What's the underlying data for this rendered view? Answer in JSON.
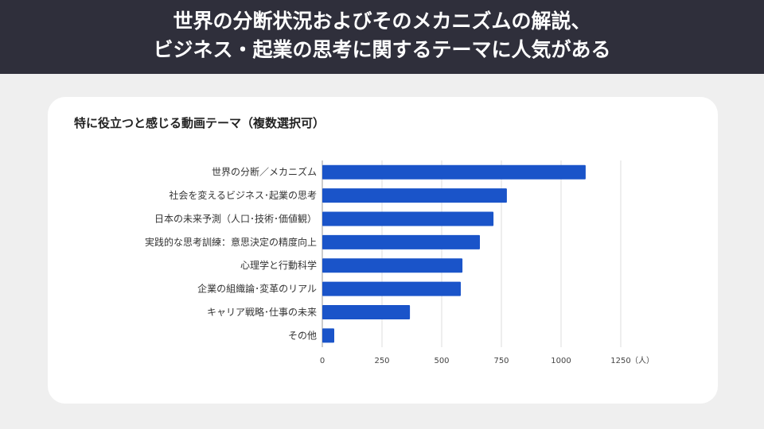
{
  "header": {
    "line1": "世界の分断状況およびそのメカニズムの解説、",
    "line2": "ビジネス・起業の思考に関するテーマに人気がある"
  },
  "chart_data": {
    "type": "bar",
    "orientation": "horizontal",
    "title": "特に役立つと感じる動画テーマ（複数選択可）",
    "categories": [
      "世界の分断／メカニズム",
      "社会を変えるビジネス･起業の思考",
      "日本の未来予測（人口･技術･価値観）",
      "実践的な思考訓練：意思決定の精度向上",
      "心理学と行動科学",
      "企業の組織論･変革のリアル",
      "キャリア戦略･仕事の未来",
      "その他"
    ],
    "values": [
      1103,
      773,
      717,
      660,
      587,
      580,
      367,
      50
    ],
    "xlim": [
      0,
      1250
    ],
    "xticks": [
      "0",
      "250",
      "500",
      "750",
      "1000",
      "1250"
    ],
    "xunit": "（人）",
    "grid": true,
    "bar_color": "#1a54c9",
    "header_color": "#2f2f3b"
  }
}
